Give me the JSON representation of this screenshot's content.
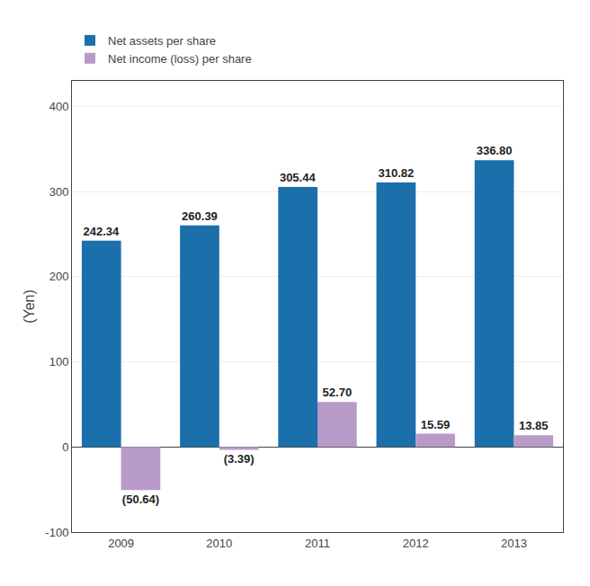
{
  "chart_data": {
    "type": "bar",
    "categories": [
      "2009",
      "2010",
      "2011",
      "2012",
      "2013"
    ],
    "series": [
      {
        "name": "Net assets per share",
        "color": "#1b6faa",
        "values": [
          242.34,
          260.39,
          305.44,
          310.82,
          336.8
        ],
        "value_labels": [
          "242.34",
          "260.39",
          "305.44",
          "310.82",
          "336.80"
        ]
      },
      {
        "name": "Net income (loss) per share",
        "color": "#b89ac8",
        "values": [
          -50.64,
          -3.39,
          52.7,
          15.59,
          13.85
        ],
        "value_labels": [
          "(50.64)",
          "(3.39)",
          "52.70",
          "15.59",
          "13.85"
        ]
      }
    ],
    "ylabel": "(Yen)",
    "ylim": [
      -100,
      430
    ],
    "yticks": [
      -100,
      0,
      100,
      200,
      300,
      400
    ],
    "grid": true,
    "legend": "upper left",
    "data_labels": true
  }
}
